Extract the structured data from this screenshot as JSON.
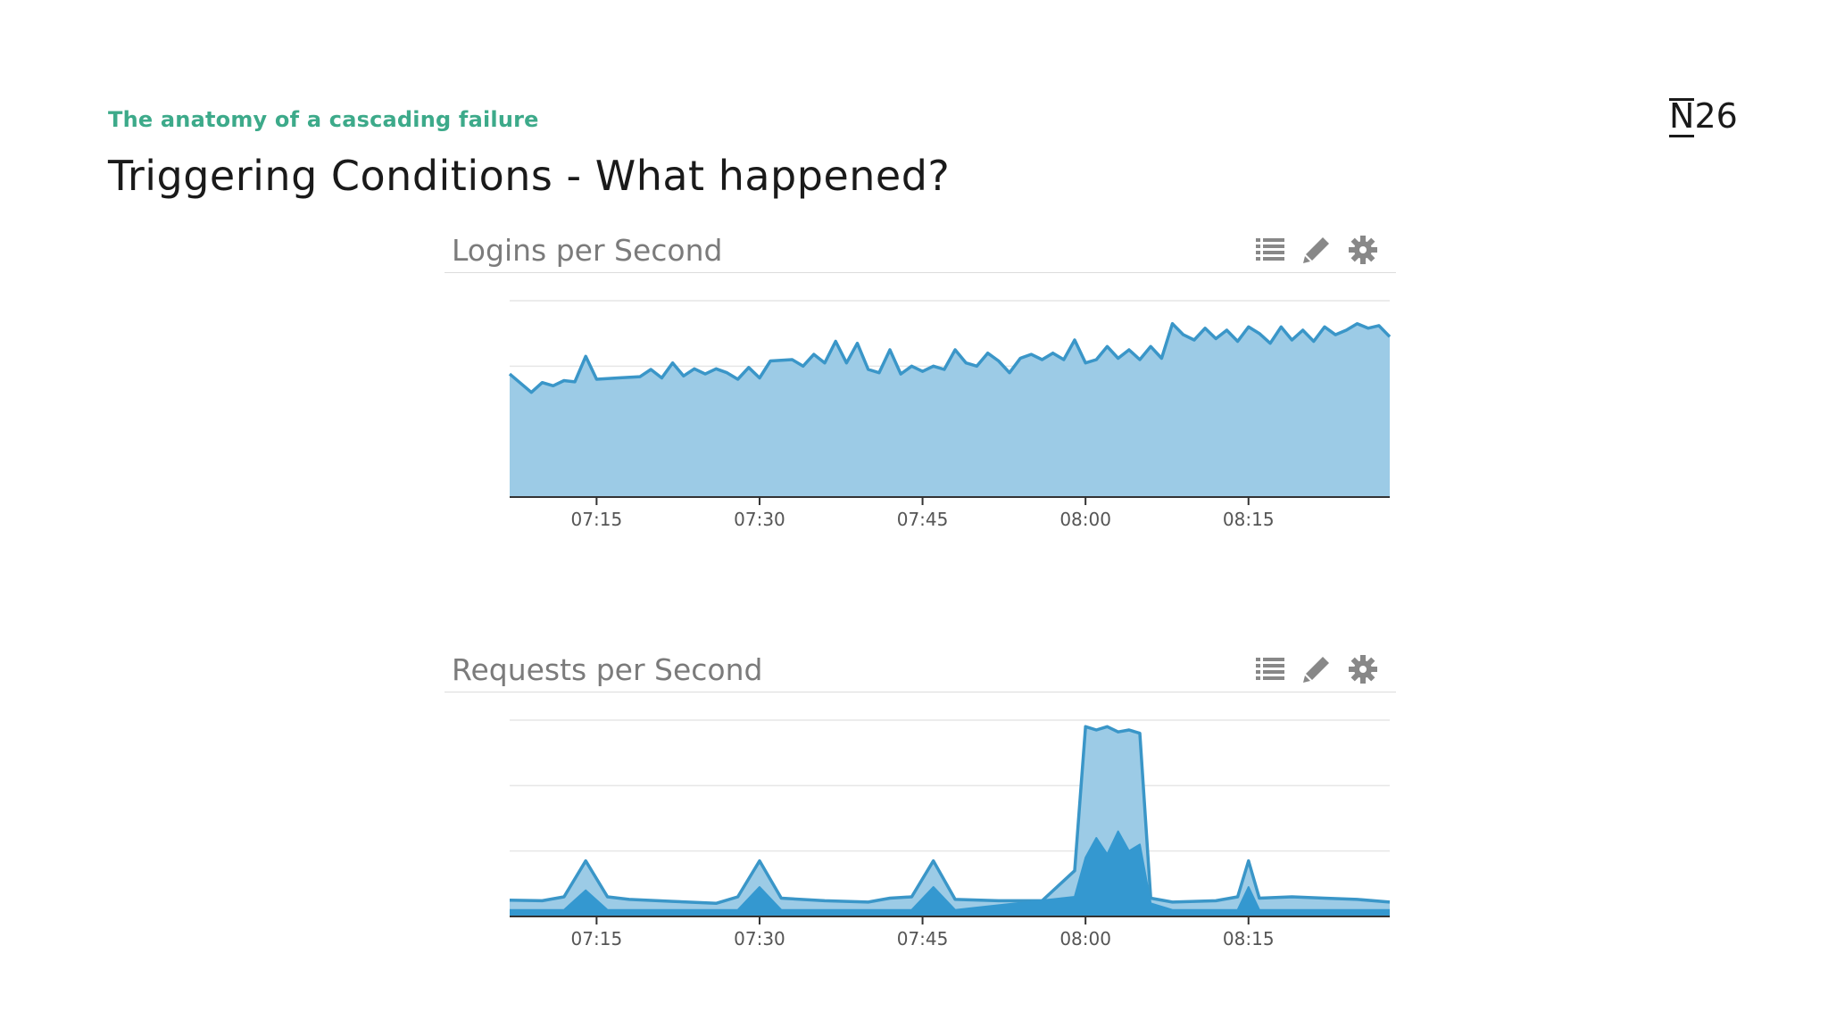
{
  "slide": {
    "kicker": "The anatomy of a cascading failure",
    "title": "Triggering Conditions - What happened?",
    "logo": "N26"
  },
  "colors": {
    "accent": "#3daa8a",
    "area_light": "#9ccbe6",
    "area_dark": "#3498d0",
    "line": "#3a96c8",
    "icon": "#888888"
  },
  "panels": [
    {
      "title": "Logins per Second",
      "icons": [
        "list-icon",
        "pencil-icon",
        "gear-icon"
      ]
    },
    {
      "title": "Requests per Second",
      "icons": [
        "list-icon",
        "pencil-icon",
        "gear-icon"
      ]
    }
  ],
  "chart_data": [
    {
      "type": "area",
      "title": "Logins per Second",
      "x_range": [
        "07:07",
        "08:28"
      ],
      "x_ticks": [
        "07:15",
        "07:30",
        "07:45",
        "08:00",
        "08:15"
      ],
      "grid": true,
      "y_range": [
        0,
        3
      ],
      "series": [
        {
          "points": [
            [
              "07:07",
              1.88
            ],
            [
              "07:09",
              1.6
            ],
            [
              "07:10",
              1.75
            ],
            [
              "07:11",
              1.7
            ],
            [
              "07:12",
              1.78
            ],
            [
              "07:13",
              1.76
            ],
            [
              "07:14",
              2.15
            ],
            [
              "07:15",
              1.8
            ],
            [
              "07:17",
              1.82
            ],
            [
              "07:19",
              1.84
            ],
            [
              "07:20",
              1.95
            ],
            [
              "07:21",
              1.82
            ],
            [
              "07:22",
              2.05
            ],
            [
              "07:23",
              1.85
            ],
            [
              "07:24",
              1.96
            ],
            [
              "07:25",
              1.88
            ],
            [
              "07:26",
              1.96
            ],
            [
              "07:27",
              1.9
            ],
            [
              "07:28",
              1.8
            ],
            [
              "07:29",
              1.98
            ],
            [
              "07:30",
              1.82
            ],
            [
              "07:31",
              2.08
            ],
            [
              "07:33",
              2.1
            ],
            [
              "07:34",
              2.0
            ],
            [
              "07:35",
              2.18
            ],
            [
              "07:36",
              2.05
            ],
            [
              "07:37",
              2.38
            ],
            [
              "07:38",
              2.05
            ],
            [
              "07:39",
              2.35
            ],
            [
              "07:40",
              1.95
            ],
            [
              "07:41",
              1.9
            ],
            [
              "07:42",
              2.25
            ],
            [
              "07:43",
              1.88
            ],
            [
              "07:44",
              2.0
            ],
            [
              "07:45",
              1.92
            ],
            [
              "07:46",
              2.0
            ],
            [
              "07:47",
              1.95
            ],
            [
              "07:48",
              2.25
            ],
            [
              "07:49",
              2.05
            ],
            [
              "07:50",
              2.0
            ],
            [
              "07:51",
              2.2
            ],
            [
              "07:52",
              2.08
            ],
            [
              "07:53",
              1.9
            ],
            [
              "07:54",
              2.12
            ],
            [
              "07:55",
              2.18
            ],
            [
              "07:56",
              2.1
            ],
            [
              "07:57",
              2.2
            ],
            [
              "07:58",
              2.1
            ],
            [
              "07:59",
              2.4
            ],
            [
              "08:00",
              2.05
            ],
            [
              "08:01",
              2.1
            ],
            [
              "08:02",
              2.3
            ],
            [
              "08:03",
              2.12
            ],
            [
              "08:04",
              2.25
            ],
            [
              "08:05",
              2.1
            ],
            [
              "08:06",
              2.3
            ],
            [
              "08:07",
              2.12
            ],
            [
              "08:08",
              2.65
            ],
            [
              "08:09",
              2.48
            ],
            [
              "08:10",
              2.4
            ],
            [
              "08:11",
              2.58
            ],
            [
              "08:12",
              2.42
            ],
            [
              "08:13",
              2.55
            ],
            [
              "08:14",
              2.38
            ],
            [
              "08:15",
              2.6
            ],
            [
              "08:16",
              2.5
            ],
            [
              "08:17",
              2.35
            ],
            [
              "08:18",
              2.6
            ],
            [
              "08:19",
              2.4
            ],
            [
              "08:20",
              2.55
            ],
            [
              "08:21",
              2.38
            ],
            [
              "08:22",
              2.6
            ],
            [
              "08:23",
              2.48
            ],
            [
              "08:24",
              2.55
            ],
            [
              "08:25",
              2.65
            ],
            [
              "08:26",
              2.58
            ],
            [
              "08:27",
              2.62
            ],
            [
              "08:28",
              2.45
            ]
          ]
        }
      ]
    },
    {
      "type": "area",
      "title": "Requests per Second",
      "x_range": [
        "07:07",
        "08:28"
      ],
      "x_ticks": [
        "07:15",
        "07:30",
        "07:45",
        "08:00",
        "08:15"
      ],
      "grid": true,
      "y_range": [
        0,
        3
      ],
      "series": [
        {
          "points": [
            [
              "07:07",
              0.25
            ],
            [
              "07:10",
              0.24
            ],
            [
              "07:12",
              0.3
            ],
            [
              "07:14",
              0.85
            ],
            [
              "07:16",
              0.3
            ],
            [
              "07:18",
              0.26
            ],
            [
              "07:22",
              0.23
            ],
            [
              "07:26",
              0.2
            ],
            [
              "07:28",
              0.3
            ],
            [
              "07:30",
              0.85
            ],
            [
              "07:32",
              0.28
            ],
            [
              "07:36",
              0.24
            ],
            [
              "07:40",
              0.22
            ],
            [
              "07:42",
              0.28
            ],
            [
              "07:44",
              0.3
            ],
            [
              "07:46",
              0.85
            ],
            [
              "07:48",
              0.26
            ],
            [
              "07:52",
              0.24
            ],
            [
              "07:56",
              0.24
            ],
            [
              "07:59",
              0.7
            ],
            [
              "08:00",
              2.9
            ],
            [
              "08:01",
              2.85
            ],
            [
              "08:02",
              2.9
            ],
            [
              "08:03",
              2.82
            ],
            [
              "08:04",
              2.85
            ],
            [
              "08:05",
              2.8
            ],
            [
              "08:06",
              0.28
            ],
            [
              "08:08",
              0.22
            ],
            [
              "08:12",
              0.24
            ],
            [
              "08:14",
              0.3
            ],
            [
              "08:15",
              0.85
            ],
            [
              "08:16",
              0.28
            ],
            [
              "08:19",
              0.3
            ],
            [
              "08:22",
              0.28
            ],
            [
              "08:25",
              0.26
            ],
            [
              "08:28",
              0.22
            ]
          ]
        },
        {
          "points": [
            [
              "07:07",
              0.1
            ],
            [
              "07:12",
              0.1
            ],
            [
              "07:14",
              0.4
            ],
            [
              "07:16",
              0.1
            ],
            [
              "07:28",
              0.1
            ],
            [
              "07:30",
              0.45
            ],
            [
              "07:32",
              0.1
            ],
            [
              "07:44",
              0.1
            ],
            [
              "07:46",
              0.45
            ],
            [
              "07:48",
              0.1
            ],
            [
              "07:59",
              0.3
            ],
            [
              "08:00",
              0.9
            ],
            [
              "08:01",
              1.2
            ],
            [
              "08:02",
              0.95
            ],
            [
              "08:03",
              1.3
            ],
            [
              "08:04",
              1.0
            ],
            [
              "08:05",
              1.1
            ],
            [
              "08:06",
              0.2
            ],
            [
              "08:08",
              0.1
            ],
            [
              "08:14",
              0.1
            ],
            [
              "08:15",
              0.45
            ],
            [
              "08:16",
              0.1
            ],
            [
              "08:28",
              0.1
            ]
          ]
        }
      ]
    }
  ]
}
